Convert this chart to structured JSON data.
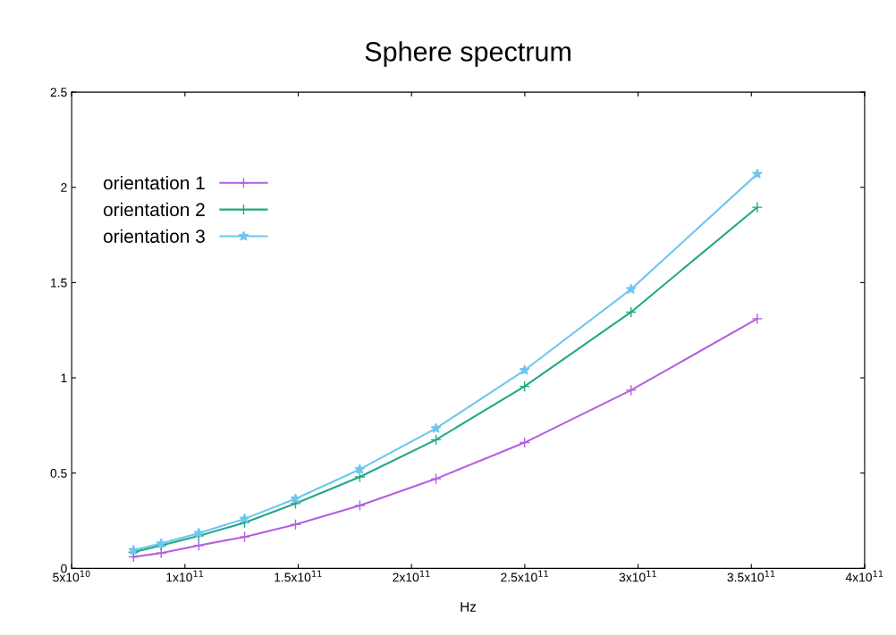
{
  "chart_data": {
    "type": "line",
    "title": "Sphere spectrum",
    "xlabel": "Hz",
    "x": [
      77300000000.0,
      89500000000.0,
      106100000000.0,
      126300000000.0,
      148800000000.0,
      177200000000.0,
      210800000000.0,
      249900000000.0,
      296900000000.0,
      352600000000.0
    ],
    "series": [
      {
        "name": "orientation 1",
        "color": "#b45ee0",
        "marker": "cross",
        "values": [
          0.06,
          0.08,
          0.12,
          0.165,
          0.23,
          0.33,
          0.47,
          0.66,
          0.935,
          1.31
        ]
      },
      {
        "name": "orientation 2",
        "color": "#22a884",
        "marker": "cross",
        "values": [
          0.085,
          0.12,
          0.17,
          0.24,
          0.34,
          0.48,
          0.675,
          0.955,
          1.345,
          1.895
        ]
      },
      {
        "name": "orientation 3",
        "color": "#6ec6f0",
        "marker": "star",
        "values": [
          0.095,
          0.13,
          0.185,
          0.26,
          0.365,
          0.52,
          0.735,
          1.04,
          1.465,
          2.07
        ]
      }
    ],
    "xlim": [
      50000000000.0,
      400000000000.0
    ],
    "xticks": [
      {
        "value": 50000000000.0,
        "label": "5x10$^{10}$"
      },
      {
        "value": 100000000000.0,
        "label": "1x10$^{11}$"
      },
      {
        "value": 150000000000.0,
        "label": "1.5x10$^{11}$"
      },
      {
        "value": 200000000000.0,
        "label": "2x10$^{11}$"
      },
      {
        "value": 250000000000.0,
        "label": "2.5x10$^{11}$"
      },
      {
        "value": 300000000000.0,
        "label": "3x10$^{11}$"
      },
      {
        "value": 350000000000.0,
        "label": "3.5x10$^{11}$"
      },
      {
        "value": 400000000000.0,
        "label": "4x10$^{11}$"
      }
    ],
    "ylim": [
      0,
      2.5
    ],
    "yticks": [
      0,
      0.5,
      1,
      1.5,
      2,
      2.5
    ],
    "grid": false,
    "legend": "top left",
    "line_style": "solid"
  }
}
